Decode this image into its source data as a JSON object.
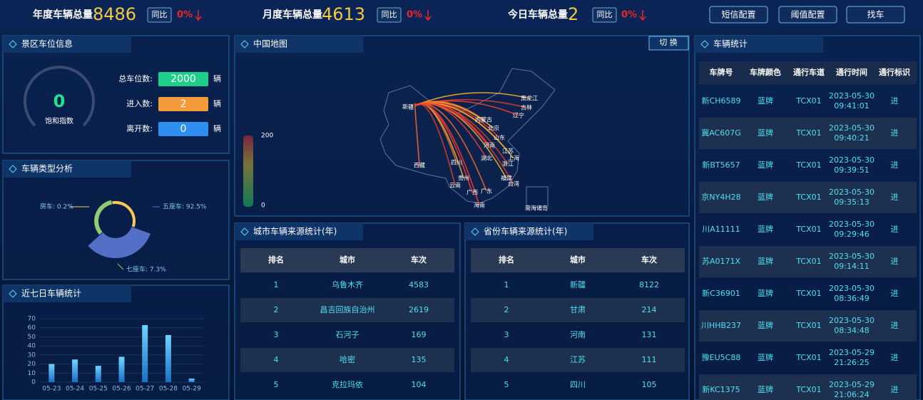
{
  "header": {
    "stats": [
      {
        "label": "年度车辆总量",
        "value": 8486,
        "yoy_label": "同比",
        "yoy": "0%"
      },
      {
        "label": "月度车辆总量",
        "value": 4613,
        "yoy_label": "同比",
        "yoy": "0%"
      },
      {
        "label": "今日车辆总量",
        "value": 2,
        "yoy_label": "同比",
        "yoy": "0%"
      }
    ],
    "buttons": [
      "短信配置",
      "阈值配置",
      "找车"
    ]
  },
  "parking": {
    "title": "景区车位信息",
    "gauge_value": 0,
    "gauge_label": "饱和指数",
    "rows": [
      {
        "label": "总车位数:",
        "value": 2000,
        "unit": "辆"
      },
      {
        "label": "进入数:",
        "value": 2,
        "unit": "辆"
      },
      {
        "label": "离开数:",
        "value": 0,
        "unit": "辆"
      }
    ]
  },
  "panels": {
    "vehicle_type": "车辆类型分析",
    "seven_day": "近七日车辆统计"
  },
  "chart_data": [
    {
      "type": "pie",
      "categories": [
        "房车",
        "五座车",
        "七座车"
      ],
      "values": [
        0.2,
        92.5,
        7.3
      ],
      "value_labels": [
        "房车: 0.2%",
        "五座车: 92.5%",
        "七座车: 7.3%"
      ],
      "colors": [
        "#fac858",
        "#5470c6",
        "#91cc75"
      ]
    },
    {
      "type": "bar",
      "categories": [
        "05-23",
        "05-24",
        "05-25",
        "05-26",
        "05-27",
        "05-28",
        "05-29"
      ],
      "values": [
        20,
        25,
        18,
        28,
        63,
        52,
        4
      ],
      "color": "#3fb4f0",
      "ylim": [
        0,
        70
      ],
      "yticks": [
        0,
        10,
        20,
        30,
        40,
        50,
        60,
        70
      ],
      "grid": true
    }
  ],
  "map": {
    "title": "中国地图",
    "switch": "切 换",
    "visual_max": 200,
    "visual_min": 0,
    "labels": [
      "新疆",
      "西藏",
      "黑龙江",
      "吉林",
      "辽宁",
      "内蒙古",
      "北京",
      "山东",
      "河南",
      "江苏",
      "上海",
      "浙江",
      "湖北",
      "四川",
      "贵州",
      "云南",
      "广西",
      "广东",
      "福建",
      "台湾",
      "海南",
      "南海诸岛"
    ]
  },
  "city_table": {
    "title": "城市车辆来源统计(年)",
    "header": [
      "排名",
      "城市",
      "车次"
    ],
    "rows": [
      [
        1,
        "乌鲁木齐",
        4583
      ],
      [
        2,
        "昌吉回族自治州",
        2619
      ],
      [
        3,
        "石河子",
        169
      ],
      [
        4,
        "哈密",
        135
      ],
      [
        5,
        "克拉玛依",
        104
      ]
    ]
  },
  "province_table": {
    "title": "省份车辆来源统计(年)",
    "header": [
      "排名",
      "城市",
      "车次"
    ],
    "rows": [
      [
        1,
        "新疆",
        8122
      ],
      [
        2,
        "甘肃",
        214
      ],
      [
        3,
        "河南",
        131
      ],
      [
        4,
        "江苏",
        111
      ],
      [
        5,
        "四川",
        105
      ]
    ]
  },
  "vehicle_table": {
    "title": "车辆统计",
    "header": [
      "车牌号",
      "车牌颜色",
      "通行车道",
      "通行时间",
      "通行标识"
    ],
    "rows": [
      [
        "新CH6589",
        "蓝牌",
        "TCX01",
        "2023-05-30 09:41:01",
        "进"
      ],
      [
        "冀AC607G",
        "蓝牌",
        "TCX01",
        "2023-05-30 09:40:21",
        "进"
      ],
      [
        "新BT5657",
        "蓝牌",
        "TCX01",
        "2023-05-30 09:39:51",
        "进"
      ],
      [
        "京NY4H28",
        "蓝牌",
        "TCX01",
        "2023-05-30 09:35:13",
        "进"
      ],
      [
        "川A11111",
        "蓝牌",
        "TCX01",
        "2023-05-30 09:29:46",
        "进"
      ],
      [
        "苏A0171X",
        "蓝牌",
        "TCX01",
        "2023-05-30 09:14:11",
        "进"
      ],
      [
        "新C36901",
        "蓝牌",
        "TCX01",
        "2023-05-30 08:36:49",
        "进"
      ],
      [
        "川HHB237",
        "蓝牌",
        "TCX01",
        "2023-05-30 08:34:48",
        "进"
      ],
      [
        "豫EU5C88",
        "蓝牌",
        "TCX01",
        "2023-05-29 21:26:25",
        "进"
      ],
      [
        "新KC1375",
        "蓝牌",
        "TCX01",
        "2023-05-29 21:06:24",
        "进"
      ]
    ]
  }
}
